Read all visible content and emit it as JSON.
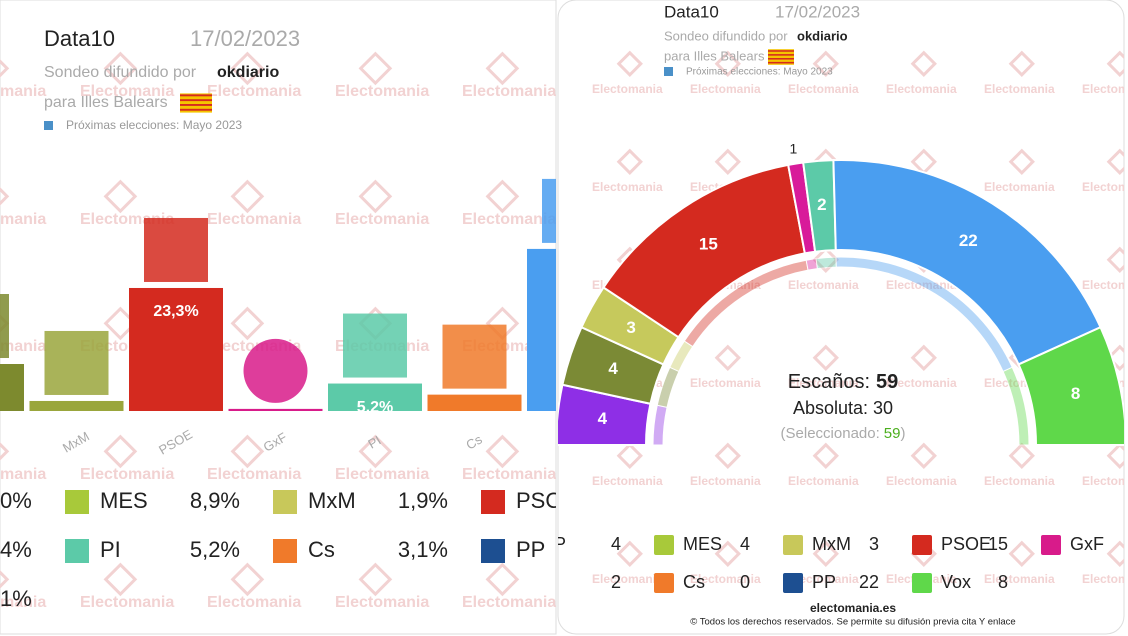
{
  "watermark": "Electomania",
  "footer": {
    "site": "electomania.es",
    "rights": "© Todos los derechos reservados. Se permite su difusión previa cita Y enlace"
  },
  "chart_data": [
    {
      "type": "bar",
      "header": {
        "brand": "Data10",
        "date": "17/02/2023",
        "source_prefix": "Sondeo difundido por",
        "source": "okdiario",
        "region": "para Illes Balears",
        "next": "Próximas elecciones: Mayo 2023"
      },
      "categories": [
        null,
        "MxM",
        "PSOE",
        "GxF",
        "PI",
        "Cs",
        null
      ],
      "values": [
        8.9,
        1.9,
        23.3,
        0.4,
        5.2,
        3.1,
        30.7
      ],
      "value_labels": [
        null,
        null,
        "23,3%",
        null,
        "5,2%",
        null,
        null
      ],
      "colors": [
        "#7d8a2e",
        "#9aa63c",
        "#d42a1f",
        "#d81b8a",
        "#5ccaa8",
        "#f07a2a",
        "#4a9ef0"
      ],
      "legend": [
        {
          "lead": "0%",
          "items": [
            {
              "name": "MES",
              "value": "8,9%",
              "color": "#a8c93a"
            },
            {
              "name": "MxM",
              "value": "1,9%",
              "color": "#c8c85a"
            },
            {
              "name": "PSO",
              "color": "#d42a1f"
            }
          ]
        },
        {
          "lead": "4%",
          "items": [
            {
              "name": "PI",
              "value": "5,2%",
              "color": "#5ccaa8"
            },
            {
              "name": "Cs",
              "value": "3,1%",
              "color": "#f07a2a"
            },
            {
              "name": "PP",
              "color": "#1d4f91"
            }
          ]
        },
        {
          "lead": "1%",
          "items": []
        }
      ]
    },
    {
      "type": "hemicycle",
      "header": {
        "brand": "Data10",
        "date": "17/02/2023",
        "source_prefix": "Sondeo difundido por",
        "source": "okdiario",
        "region": "para Illes Balears",
        "next": "Próximas elecciones: Mayo 2023"
      },
      "values": [
        4,
        4,
        3,
        15,
        1,
        2,
        22,
        8
      ],
      "colors": [
        "#8e2fe6",
        "#7b8a35",
        "#c6c95c",
        "#d42a1f",
        "#d81b9a",
        "#5ccaa8",
        "#4a9ef0",
        "#5fd84a"
      ],
      "summary": {
        "seats_label": "Escaños:",
        "seats": 59,
        "majority_label": "Absoluta:",
        "majority": 30,
        "selected_label": "(Seleccionado:",
        "selected": 59,
        "selected_close": ")"
      },
      "legend": [
        [
          {
            "name": "P",
            "value": 4
          },
          {
            "name": "MES",
            "value": 4,
            "color": "#a8c93a"
          },
          {
            "name": "MxM",
            "value": 3,
            "color": "#c8c85a"
          },
          {
            "name": "PSOE",
            "value": 15,
            "color": "#d42a1f"
          },
          {
            "name": "GxF",
            "color": "#d81b8a"
          }
        ],
        [
          {
            "value": 2
          },
          {
            "name": "Cs",
            "value": 0,
            "color": "#f07a2a"
          },
          {
            "name": "PP",
            "value": 22,
            "color": "#1d4f91"
          },
          {
            "name": "Vox",
            "value": 8,
            "color": "#5fd84a"
          }
        ]
      ]
    }
  ]
}
